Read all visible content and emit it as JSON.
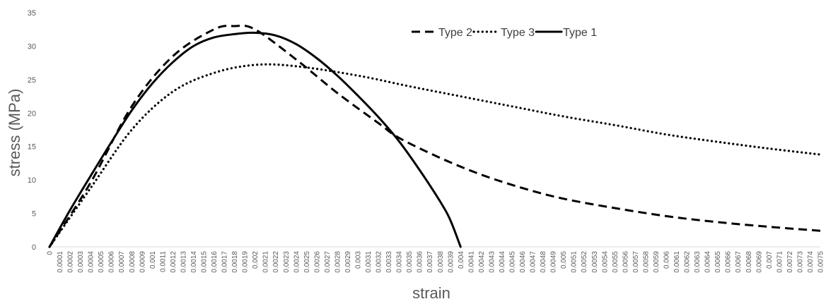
{
  "chart_data": {
    "type": "line",
    "xlabel": "strain",
    "ylabel": "stress (MPa)",
    "xlim": [
      0,
      0.0075
    ],
    "ylim": [
      0,
      35
    ],
    "y_ticks": [
      0,
      5,
      10,
      15,
      20,
      25,
      30,
      35
    ],
    "x_tick_step": 0.0001,
    "grid": false,
    "legend_position": "top-right",
    "series": [
      {
        "name": "Type 2",
        "style": "dashed",
        "color": "#000000",
        "points": [
          [
            0,
            0
          ],
          [
            0.0004,
            9.6
          ],
          [
            0.0008,
            21.0
          ],
          [
            0.0012,
            28.5
          ],
          [
            0.0016,
            32.5
          ],
          [
            0.0018,
            33.0
          ],
          [
            0.002,
            32.5
          ],
          [
            0.0024,
            28.0
          ],
          [
            0.0028,
            23.0
          ],
          [
            0.0032,
            18.5
          ],
          [
            0.0034,
            16.3
          ],
          [
            0.0038,
            13.3
          ],
          [
            0.0042,
            10.8
          ],
          [
            0.0046,
            8.8
          ],
          [
            0.005,
            7.2
          ],
          [
            0.0055,
            5.8
          ],
          [
            0.006,
            4.6
          ],
          [
            0.0065,
            3.7
          ],
          [
            0.007,
            3.0
          ],
          [
            0.0075,
            2.4
          ]
        ]
      },
      {
        "name": "Type 3",
        "style": "dotted",
        "color": "#000000",
        "points": [
          [
            0,
            0
          ],
          [
            0.0004,
            8.8
          ],
          [
            0.0008,
            17.5
          ],
          [
            0.0012,
            23.2
          ],
          [
            0.0016,
            26.0
          ],
          [
            0.002,
            27.2
          ],
          [
            0.0024,
            27.0
          ],
          [
            0.003,
            25.6
          ],
          [
            0.0035,
            24.0
          ],
          [
            0.004,
            22.5
          ],
          [
            0.0045,
            21.0
          ],
          [
            0.005,
            19.5
          ],
          [
            0.0055,
            18.2
          ],
          [
            0.006,
            16.8
          ],
          [
            0.0065,
            15.7
          ],
          [
            0.007,
            14.7
          ],
          [
            0.0075,
            13.8
          ]
        ]
      },
      {
        "name": "Type 1",
        "style": "solid",
        "color": "#000000",
        "points": [
          [
            0,
            0
          ],
          [
            0.0002,
            5.5
          ],
          [
            0.0004,
            10.6
          ],
          [
            0.0006,
            15.6
          ],
          [
            0.0008,
            20.4
          ],
          [
            0.001,
            24.4
          ],
          [
            0.0012,
            27.6
          ],
          [
            0.0014,
            30.0
          ],
          [
            0.0016,
            31.3
          ],
          [
            0.0018,
            31.8
          ],
          [
            0.002,
            32.0
          ],
          [
            0.0022,
            31.6
          ],
          [
            0.0024,
            30.3
          ],
          [
            0.0026,
            28.2
          ],
          [
            0.0028,
            25.6
          ],
          [
            0.003,
            22.6
          ],
          [
            0.0032,
            19.4
          ],
          [
            0.0034,
            15.8
          ],
          [
            0.0036,
            11.5
          ],
          [
            0.0038,
            6.8
          ],
          [
            0.0039,
            4.0
          ],
          [
            0.004,
            0
          ]
        ]
      }
    ]
  }
}
